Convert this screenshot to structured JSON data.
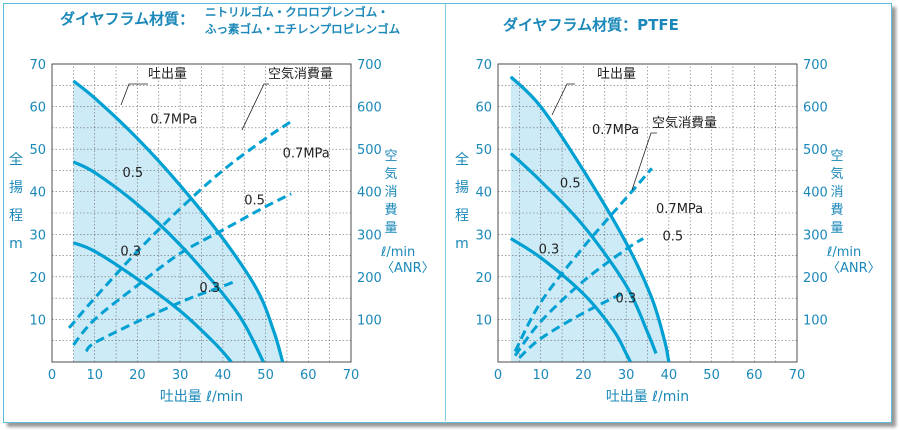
{
  "colors": {
    "accent": "#00a0d2",
    "fill": "#cdeaf7",
    "grid": "#6a6a6a",
    "text": "#1a88b8",
    "dark": "#222222"
  },
  "chart_data": [
    {
      "type": "line",
      "title": "ダイヤフラム材質：",
      "title_material_lines": [
        "ニトリルゴム・クロロプレンゴム・",
        "ふっ素ゴム・エチレンプロピレンゴム"
      ],
      "xlabel": "吐出量 ℓ/min",
      "ylabel_left": [
        "全",
        "揚",
        "程",
        "m"
      ],
      "ylabel_right": [
        "空",
        "気",
        "消",
        "費",
        "量"
      ],
      "ylabel_right_unit": [
        "ℓ/min",
        "〈ANR〉"
      ],
      "xlim": [
        0,
        70
      ],
      "ylim_left": [
        0,
        70
      ],
      "ylim_right": [
        0,
        700
      ],
      "x_ticks": [
        "0",
        "10",
        "20",
        "30",
        "40",
        "50",
        "60",
        "70"
      ],
      "y_ticks_left": [
        "10",
        "20",
        "30",
        "40",
        "50",
        "60",
        "70"
      ],
      "y_ticks_right": [
        "100",
        "200",
        "300",
        "400",
        "500",
        "600",
        "700"
      ],
      "grid": true,
      "callout_discharge": "吐出量",
      "callout_air": "空気消費量",
      "series": [
        {
          "name": "0.7MPa",
          "kind": "discharge",
          "x": [
            5,
            10,
            20,
            30,
            40,
            48,
            52,
            54
          ],
          "y": [
            66,
            62,
            52.5,
            41.5,
            29,
            17,
            7,
            0
          ]
        },
        {
          "name": "0.5",
          "kind": "discharge",
          "x": [
            5,
            10,
            20,
            30,
            40,
            45,
            49.5
          ],
          "y": [
            47,
            44.5,
            37,
            27.5,
            16,
            9,
            0
          ]
        },
        {
          "name": "0.3",
          "kind": "discharge",
          "x": [
            5,
            10,
            20,
            30,
            38,
            42
          ],
          "y": [
            28,
            26,
            19.5,
            12,
            4.5,
            0
          ]
        },
        {
          "name": "0.7MPa",
          "kind": "air",
          "x": [
            4,
            10,
            20,
            30,
            40,
            50,
            56
          ],
          "y": [
            80,
            150,
            260,
            360,
            450,
            525,
            565
          ]
        },
        {
          "name": "0.5",
          "kind": "air",
          "x": [
            5,
            10,
            20,
            30,
            40,
            50,
            56
          ],
          "y": [
            40,
            100,
            180,
            255,
            310,
            365,
            395
          ]
        },
        {
          "name": "0.3",
          "kind": "air",
          "x": [
            8,
            10,
            20,
            30,
            35,
            40,
            43
          ],
          "y": [
            25,
            45,
            95,
            140,
            160,
            178,
            190
          ]
        }
      ],
      "labels": [
        {
          "text": "0.7MPa",
          "x": 23,
          "y": 56
        },
        {
          "text": "0.5",
          "x": 16.5,
          "y": 43.5
        },
        {
          "text": "0.3",
          "x": 16,
          "y": 25
        },
        {
          "text": "0.7MPa",
          "x": 54,
          "y": 48
        },
        {
          "text": "0.5",
          "x": 45,
          "y": 37
        },
        {
          "text": "0.3",
          "x": 34.5,
          "y": 16.5
        }
      ]
    },
    {
      "type": "line",
      "title": "ダイヤフラム材質：PTFE",
      "xlabel": "吐出量 ℓ/min",
      "ylabel_left": [
        "全",
        "揚",
        "程",
        "m"
      ],
      "ylabel_right": [
        "空",
        "気",
        "消",
        "費",
        "量"
      ],
      "ylabel_right_unit": [
        "ℓ/min",
        "〈ANR〉"
      ],
      "xlim": [
        0,
        70
      ],
      "ylim_left": [
        0,
        70
      ],
      "ylim_right": [
        0,
        700
      ],
      "x_ticks": [
        "0",
        "10",
        "20",
        "30",
        "40",
        "50",
        "60",
        "70"
      ],
      "y_ticks_left": [
        "10",
        "20",
        "30",
        "40",
        "50",
        "60",
        "70"
      ],
      "y_ticks_right": [
        "100",
        "200",
        "300",
        "400",
        "500",
        "600",
        "700"
      ],
      "grid": true,
      "callout_discharge": "吐出量",
      "callout_air": "空気消費量",
      "series": [
        {
          "name": "0.7MPa",
          "kind": "discharge",
          "x": [
            3,
            10,
            20,
            30,
            36,
            39,
            40
          ],
          "y": [
            67,
            60,
            45,
            28,
            15,
            5,
            0
          ]
        },
        {
          "name": "0.5",
          "kind": "discharge",
          "x": [
            3,
            10,
            20,
            30,
            35,
            37
          ],
          "y": [
            49,
            42.5,
            32,
            18,
            7,
            2
          ]
        },
        {
          "name": "0.3",
          "kind": "discharge",
          "x": [
            3,
            10,
            20,
            27,
            30,
            31
          ],
          "y": [
            29,
            24.5,
            16,
            7.5,
            2,
            0
          ]
        },
        {
          "name": "0.7MPa",
          "kind": "air",
          "x": [
            4,
            10,
            20,
            30,
            36
          ],
          "y": [
            25,
            140,
            270,
            385,
            455
          ]
        },
        {
          "name": "0.5",
          "kind": "air",
          "x": [
            4,
            10,
            20,
            30,
            34
          ],
          "y": [
            15,
            95,
            190,
            265,
            290
          ]
        },
        {
          "name": "0.3",
          "kind": "air",
          "x": [
            5,
            10,
            20,
            30
          ],
          "y": [
            10,
            55,
            115,
            165
          ]
        }
      ],
      "labels": [
        {
          "text": "0.7MPa",
          "x": 22,
          "y": 53.5
        },
        {
          "text": "0.5",
          "x": 14.5,
          "y": 41
        },
        {
          "text": "0.3",
          "x": 9.5,
          "y": 25.5
        },
        {
          "text": "0.7MPa",
          "x": 37,
          "y": 35
        },
        {
          "text": "0.5",
          "x": 38.5,
          "y": 28.5
        },
        {
          "text": "0.3",
          "x": 27.5,
          "y": 14
        }
      ]
    }
  ]
}
